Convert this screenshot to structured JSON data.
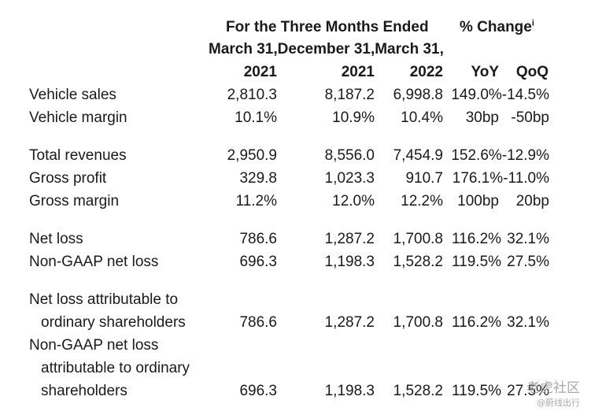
{
  "header": {
    "group": "For the Three Months Ended",
    "change": "% Change",
    "change_note": "i",
    "dates": "March 31,December 31,March 31,",
    "years": [
      "2021",
      "2021",
      "2022"
    ],
    "yoy": "YoY",
    "qoq": "QoQ"
  },
  "rows": [
    {
      "label": "Vehicle sales",
      "v1": "2,810.3",
      "v2": "8,187.2",
      "v3": "6,998.8",
      "chg": "149.0%-14.5%"
    },
    {
      "label": "Vehicle margin",
      "v1": "10.1%",
      "v2": "10.9%",
      "v3": "10.4%",
      "yoy": "30bp",
      "qoq": "-50bp"
    },
    {
      "label": "Total revenues",
      "v1": "2,950.9",
      "v2": "8,556.0",
      "v3": "7,454.9",
      "chg": "152.6%-12.9%"
    },
    {
      "label": "Gross profit",
      "v1": "329.8",
      "v2": "1,023.3",
      "v3": "910.7",
      "chg": "176.1%-11.0%"
    },
    {
      "label": "Gross margin",
      "v1": "11.2%",
      "v2": "12.0%",
      "v3": "12.2%",
      "yoy": "100bp",
      "qoq": "20bp"
    },
    {
      "label": "Net loss",
      "v1": "786.6",
      "v2": "1,287.2",
      "v3": "1,700.8",
      "yoy": "116.2%",
      "qoq": "32.1%"
    },
    {
      "label": "Non-GAAP net loss",
      "v1": "696.3",
      "v2": "1,198.3",
      "v3": "1,528.2",
      "yoy": "119.5%",
      "qoq": "27.5%"
    },
    {
      "label_lines": [
        "Net loss attributable to",
        "ordinary shareholders"
      ],
      "v1": "786.6",
      "v2": "1,287.2",
      "v3": "1,700.8",
      "yoy": "116.2%",
      "qoq": "32.1%"
    },
    {
      "label_lines": [
        "Non-GAAP net loss",
        "attributable to ordinary",
        "shareholders"
      ],
      "v1": "696.3",
      "v2": "1,198.3",
      "v3": "1,528.2",
      "yoy": "119.5%",
      "qoq": "27.5%"
    }
  ],
  "watermark": {
    "main": "老虎社区",
    "sub": "@蔚线出行"
  }
}
